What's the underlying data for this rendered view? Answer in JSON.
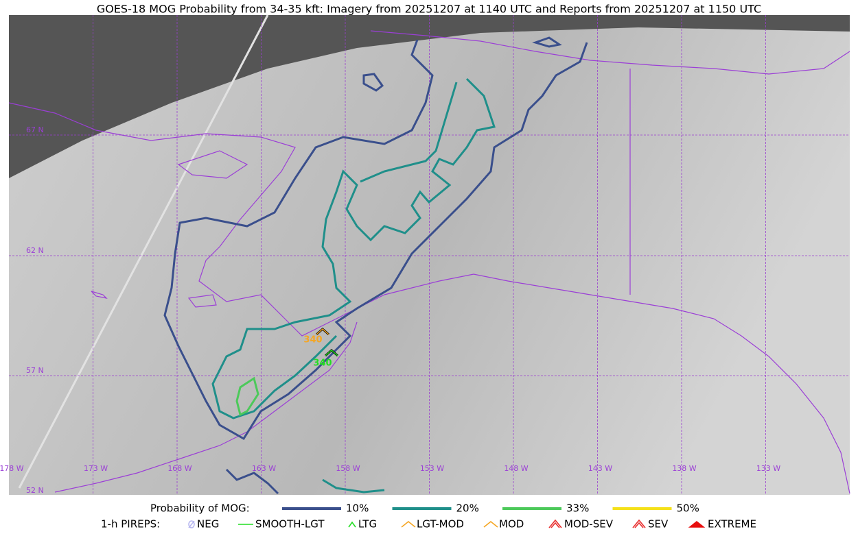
{
  "title": "GOES-18 MOG Probability from 34-35 kft: Imagery from 20251207 at 1140 UTC and Reports from 20251207 at 1150 UTC",
  "grid_labels": {
    "latitudes": [
      "67 N",
      "62 N",
      "57 N",
      "52 N"
    ],
    "longitudes": [
      "178 W",
      "173 W",
      "168 W",
      "163 W",
      "158 W",
      "153 W",
      "148 W",
      "143 W",
      "138 W",
      "133 W"
    ]
  },
  "reports": [
    {
      "label": "340",
      "color": "#f5a623"
    },
    {
      "label": "340",
      "color": "#22dd22"
    }
  ],
  "legend": {
    "probability": {
      "label": "Probability of MOG:",
      "items": [
        {
          "label": "10%",
          "color": "#3a4f8c"
        },
        {
          "label": "20%",
          "color": "#1f8f8a"
        },
        {
          "label": "33%",
          "color": "#4cc95a"
        },
        {
          "label": "50%",
          "color": "#f5e11a"
        }
      ]
    },
    "pireps": {
      "label": "1-h PIREPS:",
      "items": [
        {
          "label": "NEG",
          "color": "#b8b8f0"
        },
        {
          "label": "SMOOTH-LGT",
          "color": "#22dd22"
        },
        {
          "label": "LTG",
          "color": "#22dd22"
        },
        {
          "label": "LGT-MOD",
          "color": "#f5a623"
        },
        {
          "label": "MOD",
          "color": "#f5a623"
        },
        {
          "label": "MOD-SEV",
          "color": "#e83030"
        },
        {
          "label": "SEV",
          "color": "#e83030"
        },
        {
          "label": "EXTREME",
          "color": "#e81010"
        }
      ]
    }
  }
}
